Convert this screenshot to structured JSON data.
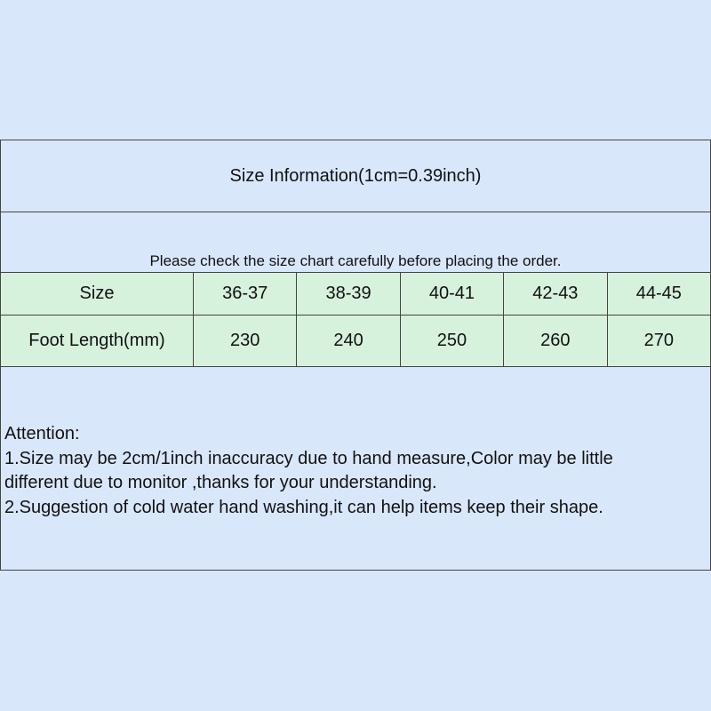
{
  "title": "Size Information(1cm=0.39inch)",
  "notice": "Please check the size chart carefully before placing the order.",
  "colors": {
    "background": "#d9e7fb",
    "table": "#d6f1dc",
    "border": "#444444"
  },
  "table": {
    "rows": [
      {
        "label": "Size",
        "values": [
          "36-37",
          "38-39",
          "40-41",
          "42-43",
          "44-45"
        ]
      },
      {
        "label": "Foot Length(mm)",
        "values": [
          "230",
          "240",
          "250",
          "260",
          "270"
        ]
      }
    ]
  },
  "attention": {
    "heading": "Attention:",
    "lines": [
      "1.Size may be 2cm/1inch inaccuracy due to hand measure,Color may be little",
      "different due to monitor ,thanks for your understanding.",
      "2.Suggestion of cold water hand washing,it can help items keep their shape."
    ]
  }
}
